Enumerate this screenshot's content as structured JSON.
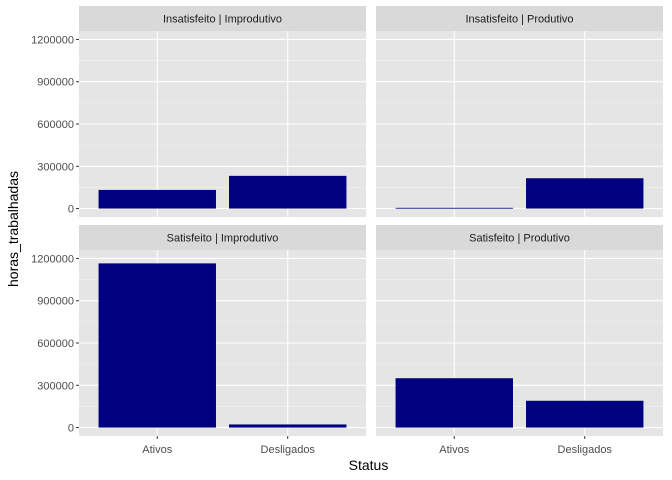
{
  "chart_data": {
    "type": "bar",
    "xlabel": "Status",
    "ylabel": "horas_trabalhadas",
    "categories": [
      "Ativos",
      "Desligados"
    ],
    "ylim": [
      0,
      1260000
    ],
    "yticks": [
      0,
      300000,
      600000,
      900000,
      1200000
    ],
    "ytick_labels": [
      "0",
      "300000",
      "600000",
      "900000",
      "1200000"
    ],
    "bar_color": "#000080",
    "panel_background": "#e5e5e5",
    "strip_background": "#d9d9d9",
    "grid": true,
    "facets": [
      {
        "label": "Insatisfeito | Improdutivo",
        "values": [
          132000,
          232000
        ]
      },
      {
        "label": "Insatisfeito | Produtivo",
        "values": [
          5000,
          215000
        ]
      },
      {
        "label": "Satisfeito | Improdutivo",
        "values": [
          1165000,
          22000
        ]
      },
      {
        "label": "Satisfeito | Produtivo",
        "values": [
          350000,
          190000
        ]
      }
    ]
  }
}
